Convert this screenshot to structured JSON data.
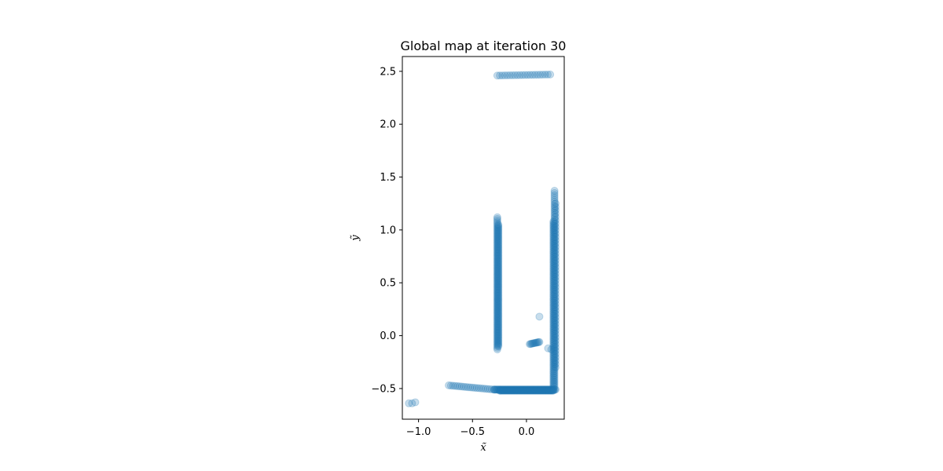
{
  "chart_data": {
    "type": "scatter",
    "title": "Global map at iteration 30",
    "xlabel": "x̃",
    "ylabel": "ỹ",
    "xlim": [
      -1.15,
      0.35
    ],
    "ylim": [
      -0.79,
      2.64
    ],
    "xticks": [
      -1.0,
      -0.5,
      0.0
    ],
    "xtick_labels": [
      "−1.0",
      "−0.5",
      "0.0"
    ],
    "yticks": [
      -0.5,
      0.0,
      0.5,
      1.0,
      1.5,
      2.0,
      2.5
    ],
    "ytick_labels": [
      "−0.5",
      "0.0",
      "0.5",
      "1.0",
      "1.5",
      "2.0",
      "2.5"
    ],
    "grid": false,
    "marker_color": "#1f77b4",
    "marker_alpha": 0.25,
    "segments": [
      {
        "x0": -0.27,
        "y0": 2.46,
        "x1": 0.22,
        "y1": 2.47,
        "n": 22
      },
      {
        "x0": -0.27,
        "y0": -0.13,
        "x1": -0.27,
        "y1": 1.12,
        "n": 80
      },
      {
        "x0": -0.26,
        "y0": -0.1,
        "x1": -0.26,
        "y1": 1.05,
        "n": 80
      },
      {
        "x0": 0.25,
        "y0": -0.5,
        "x1": 0.25,
        "y1": 1.08,
        "n": 90
      },
      {
        "x0": 0.26,
        "y0": -0.48,
        "x1": 0.26,
        "y1": 1.37,
        "n": 90
      },
      {
        "x0": 0.27,
        "y0": -0.3,
        "x1": 0.27,
        "y1": 1.25,
        "n": 50
      },
      {
        "x0": -0.3,
        "y0": -0.51,
        "x1": 0.27,
        "y1": -0.51,
        "n": 90
      },
      {
        "x0": -0.25,
        "y0": -0.52,
        "x1": 0.25,
        "y1": -0.52,
        "n": 80
      },
      {
        "x0": -0.72,
        "y0": -0.47,
        "x1": -0.3,
        "y1": -0.51,
        "n": 22
      },
      {
        "x0": 0.03,
        "y0": -0.08,
        "x1": 0.12,
        "y1": -0.06,
        "n": 12
      }
    ],
    "points": [
      {
        "x": -1.09,
        "y": -0.64
      },
      {
        "x": -1.06,
        "y": -0.64
      },
      {
        "x": -1.03,
        "y": -0.63
      },
      {
        "x": 0.12,
        "y": 0.18
      },
      {
        "x": 0.2,
        "y": -0.12
      },
      {
        "x": 0.23,
        "y": -0.13
      }
    ]
  }
}
